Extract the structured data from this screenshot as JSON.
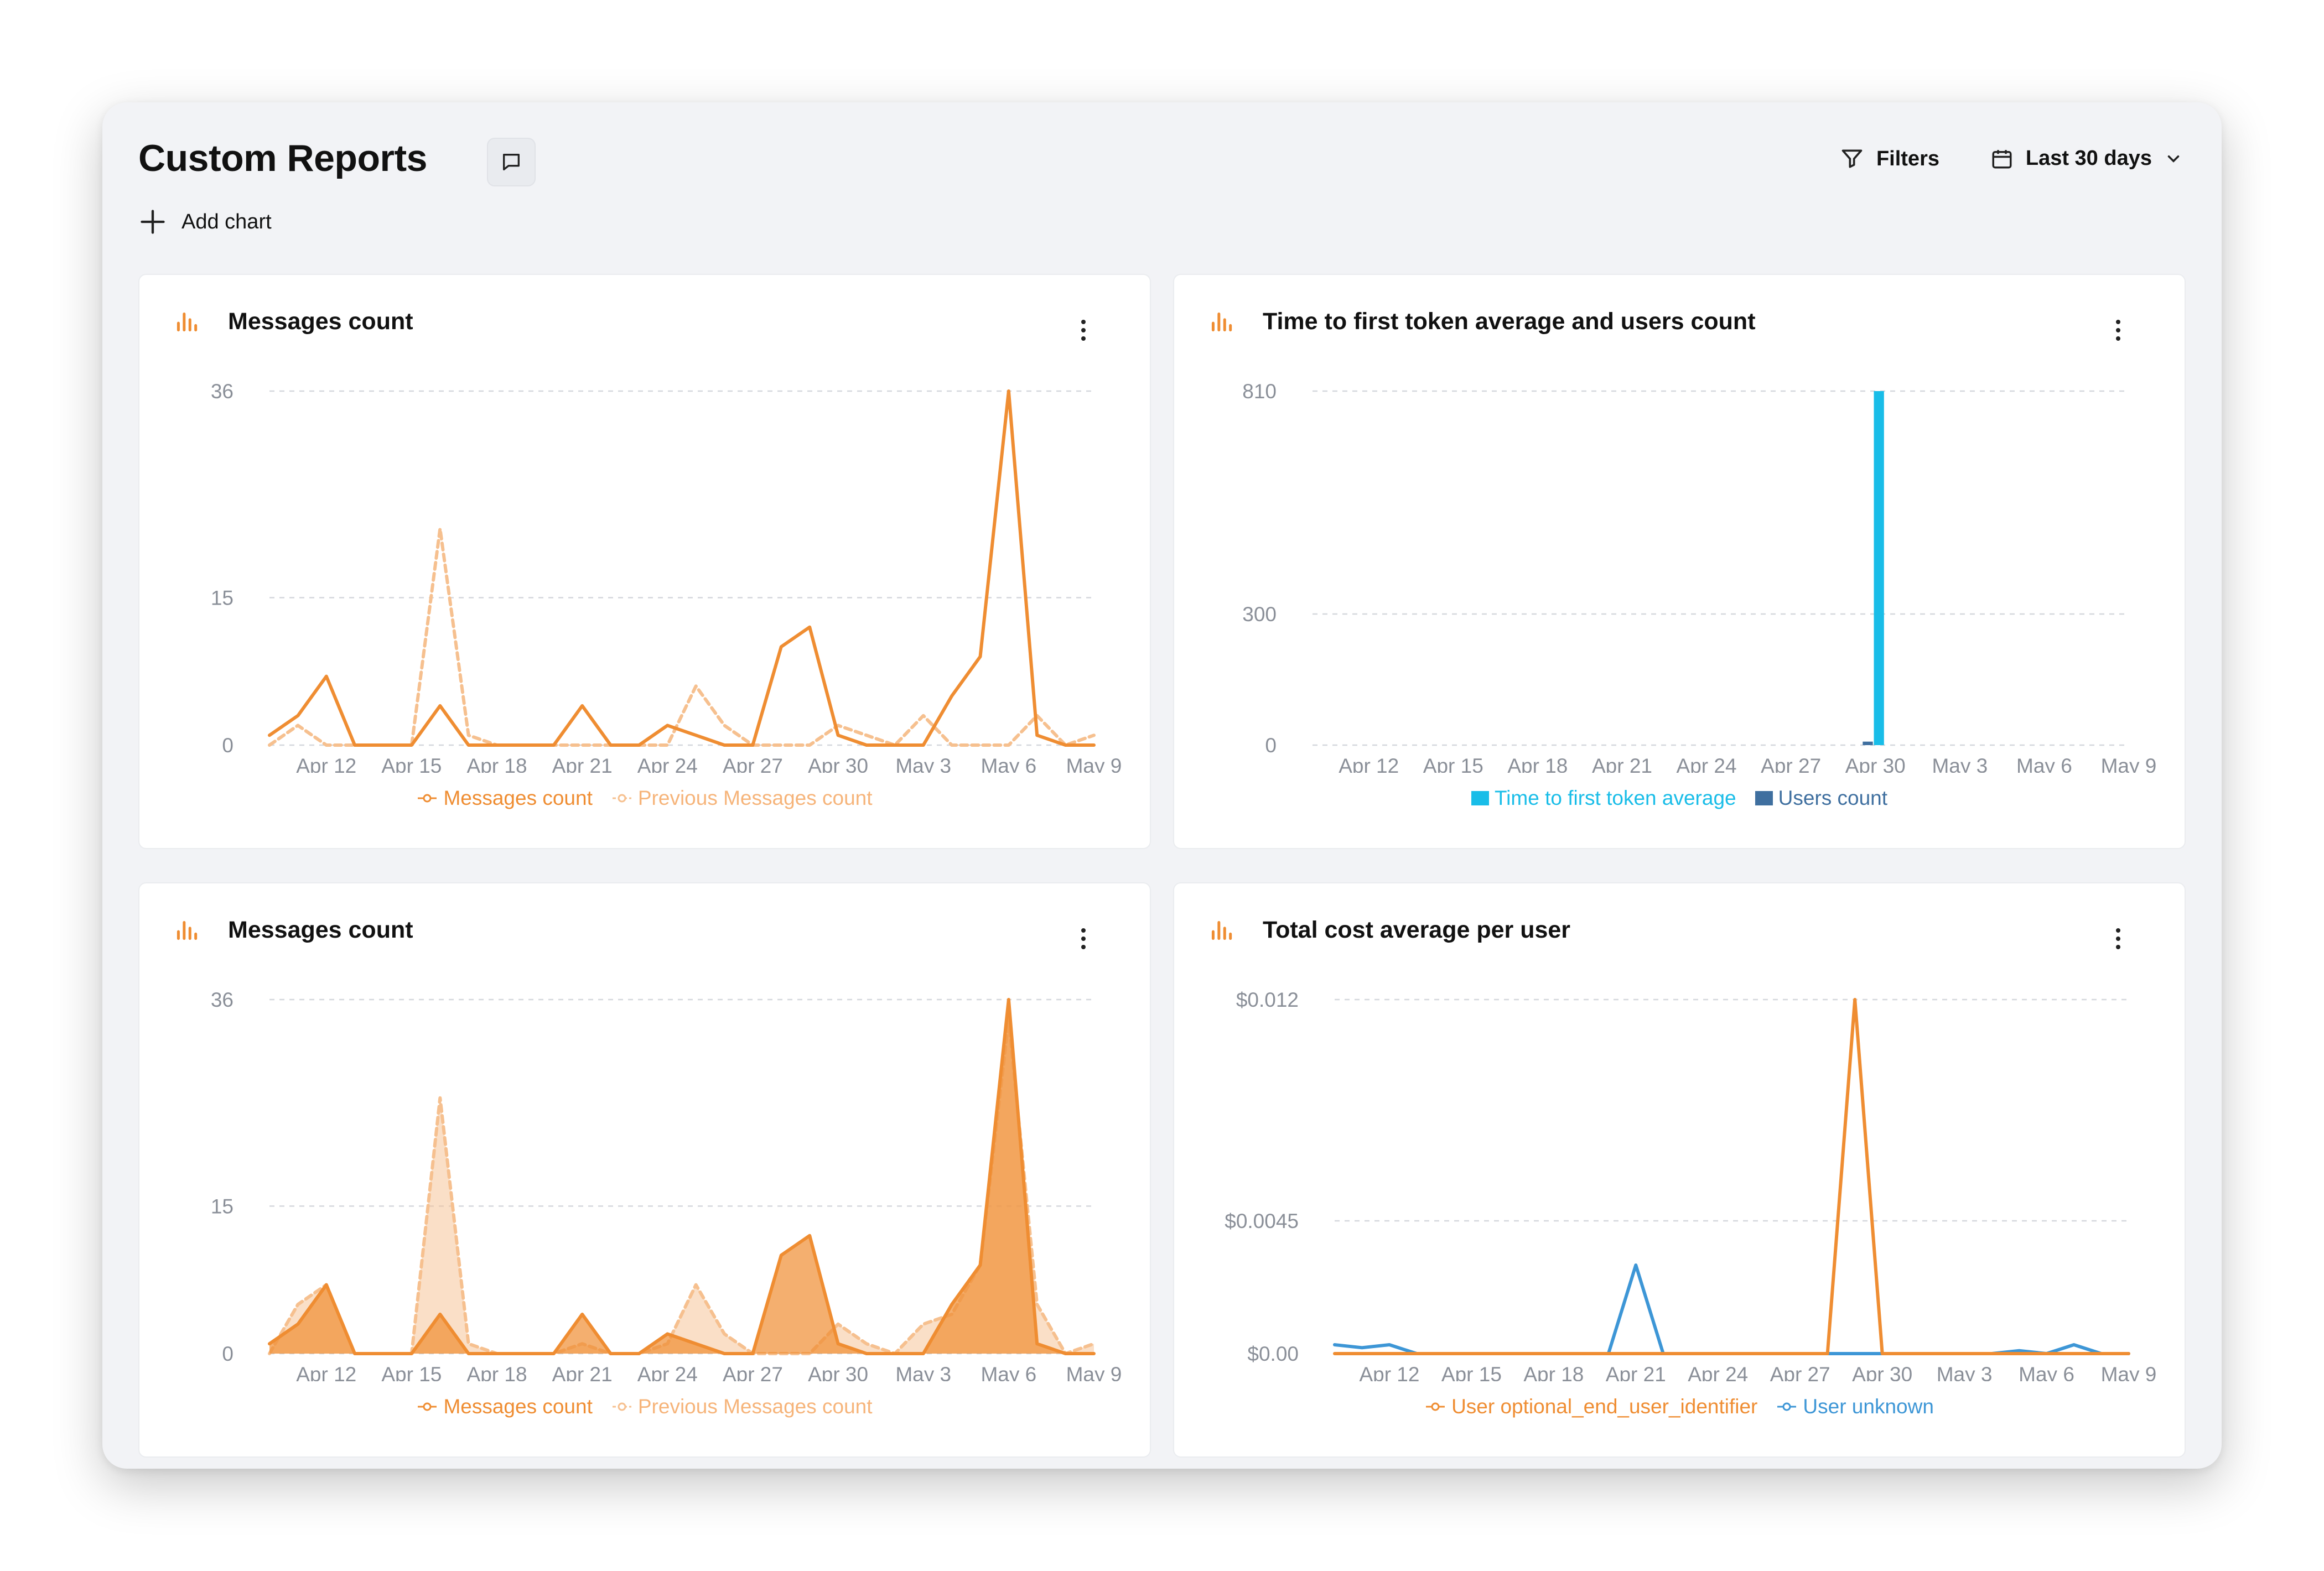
{
  "header": {
    "title": "Custom Reports",
    "filters_label": "Filters",
    "date_range_label": "Last 30 days",
    "add_chart_label": "Add chart"
  },
  "colors": {
    "orange": "#ef8d32",
    "orange_light": "#f6c08f",
    "cyan": "#19bde8",
    "steel_blue": "#3f6f9f",
    "blue": "#3d96d6",
    "grid": "#d5d8dd"
  },
  "icons": {
    "chart_icon": "bar-chart-icon",
    "comment": "comment-icon",
    "filter": "filter-icon",
    "calendar": "calendar-icon",
    "chevron": "chevron-down-icon",
    "add": "plus-icon",
    "menu": "kebab-menu-icon"
  },
  "chart_data": [
    {
      "id": "c1",
      "title": "Messages count",
      "type": "line",
      "x": [
        "Apr 10",
        "Apr 11",
        "Apr 12",
        "Apr 13",
        "Apr 14",
        "Apr 15",
        "Apr 16",
        "Apr 17",
        "Apr 18",
        "Apr 19",
        "Apr 20",
        "Apr 21",
        "Apr 22",
        "Apr 23",
        "Apr 24",
        "Apr 25",
        "Apr 26",
        "Apr 27",
        "Apr 28",
        "Apr 29",
        "Apr 30",
        "May 1",
        "May 2",
        "May 3",
        "May 4",
        "May 5",
        "May 6",
        "May 7",
        "May 8",
        "May 9"
      ],
      "x_ticks": [
        "Apr 12",
        "Apr 15",
        "Apr 18",
        "Apr 21",
        "Apr 24",
        "Apr 27",
        "Apr 30",
        "May 3",
        "May 6",
        "May 9"
      ],
      "y_ticks": [
        "36",
        "15",
        "0"
      ],
      "y_tick_values": [
        36,
        15,
        0
      ],
      "ylim": [
        0,
        36
      ],
      "series": [
        {
          "name": "Messages count",
          "style": "solid",
          "color": "#ef8d32",
          "values": [
            1,
            3,
            7,
            0,
            0,
            0,
            4,
            0,
            0,
            0,
            0,
            4,
            0,
            0,
            2,
            1,
            0,
            0,
            10,
            12,
            1,
            0,
            0,
            0,
            5,
            9,
            36,
            1,
            0,
            0
          ]
        },
        {
          "name": "Previous Messages count",
          "style": "dashed",
          "color": "#f6c08f",
          "values": [
            0,
            2,
            0,
            0,
            0,
            0,
            22,
            1,
            0,
            0,
            0,
            0,
            0,
            0,
            0,
            6,
            2,
            0,
            0,
            0,
            2,
            1,
            0,
            3,
            0,
            0,
            0,
            3,
            0,
            1
          ]
        }
      ]
    },
    {
      "id": "c2",
      "title": "Time to first token average and users count",
      "type": "bar",
      "x": [
        "Apr 10",
        "Apr 11",
        "Apr 12",
        "Apr 13",
        "Apr 14",
        "Apr 15",
        "Apr 16",
        "Apr 17",
        "Apr 18",
        "Apr 19",
        "Apr 20",
        "Apr 21",
        "Apr 22",
        "Apr 23",
        "Apr 24",
        "Apr 25",
        "Apr 26",
        "Apr 27",
        "Apr 28",
        "Apr 29",
        "Apr 30",
        "May 1",
        "May 2",
        "May 3",
        "May 4",
        "May 5",
        "May 6",
        "May 7",
        "May 8",
        "May 9"
      ],
      "x_ticks": [
        "Apr 12",
        "Apr 15",
        "Apr 18",
        "Apr 21",
        "Apr 24",
        "Apr 27",
        "Apr 30",
        "May 3",
        "May 6",
        "May 9"
      ],
      "y_ticks": [
        "810",
        "300",
        "0"
      ],
      "y_tick_values": [
        810,
        300,
        0
      ],
      "ylim": [
        0,
        810
      ],
      "series": [
        {
          "name": "Time to first token average",
          "color": "#19bde8",
          "values": [
            0,
            0,
            0,
            0,
            0,
            0,
            0,
            0,
            0,
            0,
            0,
            0,
            0,
            0,
            0,
            0,
            0,
            0,
            0,
            0,
            810,
            0,
            0,
            0,
            0,
            0,
            0,
            0,
            0,
            0
          ]
        },
        {
          "name": "Users count",
          "color": "#3f6f9f",
          "values": [
            0,
            0,
            0,
            0,
            0,
            0,
            0,
            0,
            0,
            0,
            0,
            0,
            0,
            0,
            0,
            0,
            0,
            0,
            0,
            0,
            8,
            0,
            0,
            0,
            0,
            0,
            0,
            0,
            0,
            0
          ]
        }
      ]
    },
    {
      "id": "c3",
      "title": "Messages count",
      "type": "area",
      "x": [
        "Apr 10",
        "Apr 11",
        "Apr 12",
        "Apr 13",
        "Apr 14",
        "Apr 15",
        "Apr 16",
        "Apr 17",
        "Apr 18",
        "Apr 19",
        "Apr 20",
        "Apr 21",
        "Apr 22",
        "Apr 23",
        "Apr 24",
        "Apr 25",
        "Apr 26",
        "Apr 27",
        "Apr 28",
        "Apr 29",
        "Apr 30",
        "May 1",
        "May 2",
        "May 3",
        "May 4",
        "May 5",
        "May 6",
        "May 7",
        "May 8",
        "May 9"
      ],
      "x_ticks": [
        "Apr 12",
        "Apr 15",
        "Apr 18",
        "Apr 21",
        "Apr 24",
        "Apr 27",
        "Apr 30",
        "May 3",
        "May 6",
        "May 9"
      ],
      "y_ticks": [
        "36",
        "15",
        "0"
      ],
      "y_tick_values": [
        36,
        15,
        0
      ],
      "ylim": [
        0,
        36
      ],
      "series": [
        {
          "name": "Messages count",
          "style": "solid",
          "color": "#ef8d32",
          "values": [
            1,
            3,
            7,
            0,
            0,
            0,
            4,
            0,
            0,
            0,
            0,
            4,
            0,
            0,
            2,
            1,
            0,
            0,
            10,
            12,
            1,
            0,
            0,
            0,
            5,
            9,
            36,
            1,
            0,
            0
          ]
        },
        {
          "name": "Previous Messages count",
          "style": "dashed",
          "color": "#f6c08f",
          "values": [
            0,
            5,
            7,
            0,
            0,
            0,
            26,
            1,
            0,
            0,
            0,
            1,
            0,
            0,
            1,
            7,
            2,
            0,
            0,
            0,
            3,
            1,
            0,
            3,
            4,
            9,
            34,
            5,
            0,
            1
          ]
        }
      ]
    },
    {
      "id": "c4",
      "title": "Total cost average per user",
      "type": "line",
      "x": [
        "Apr 10",
        "Apr 11",
        "Apr 12",
        "Apr 13",
        "Apr 14",
        "Apr 15",
        "Apr 16",
        "Apr 17",
        "Apr 18",
        "Apr 19",
        "Apr 20",
        "Apr 21",
        "Apr 22",
        "Apr 23",
        "Apr 24",
        "Apr 25",
        "Apr 26",
        "Apr 27",
        "Apr 28",
        "Apr 29",
        "Apr 30",
        "May 1",
        "May 2",
        "May 3",
        "May 4",
        "May 5",
        "May 6",
        "May 7",
        "May 8",
        "May 9"
      ],
      "x_ticks": [
        "Apr 12",
        "Apr 15",
        "Apr 18",
        "Apr 21",
        "Apr 24",
        "Apr 27",
        "Apr 30",
        "May 3",
        "May 6",
        "May 9"
      ],
      "y_ticks": [
        "$0.012",
        "$0.0045",
        "$0.00"
      ],
      "y_tick_values": [
        0.012,
        0.0045,
        0
      ],
      "ylim": [
        0,
        0.012
      ],
      "series": [
        {
          "name": "User optional_end_user_identifier",
          "style": "solid",
          "color": "#ef8d32",
          "values": [
            0,
            0,
            0,
            0,
            0,
            0,
            0,
            0,
            0,
            0,
            0,
            0,
            0,
            0,
            0,
            0,
            0,
            0,
            0,
            0.012,
            0,
            0,
            0,
            0,
            0,
            0,
            0,
            0,
            0,
            0
          ]
        },
        {
          "name": "User unknown",
          "style": "solid",
          "color": "#3d96d6",
          "values": [
            0.0003,
            0.0002,
            0.0003,
            0,
            0,
            0,
            0,
            0,
            0,
            0,
            0,
            0.003,
            0,
            0,
            0,
            0,
            0,
            0,
            0,
            0,
            0,
            0,
            0,
            0,
            0,
            0.0001,
            0,
            0.0003,
            0,
            0
          ]
        }
      ]
    }
  ]
}
